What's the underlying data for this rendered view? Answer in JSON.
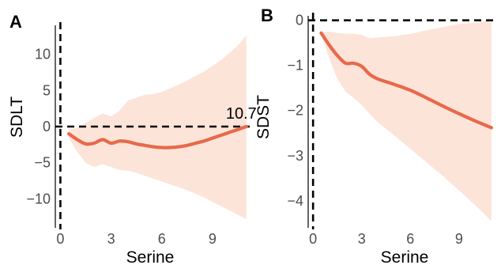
{
  "chart_data": [
    {
      "type": "line",
      "panel_label": "A",
      "xlabel": "Serine",
      "ylabel": "SDLT",
      "xlim": [
        -0.3,
        11.2
      ],
      "ylim": [
        -14,
        14
      ],
      "x_ticks": [
        "0",
        "3",
        "6",
        "9"
      ],
      "y_ticks": [
        "10",
        "5",
        "0",
        "−5",
        "−10"
      ],
      "x_tick_values": [
        0,
        3,
        6,
        9
      ],
      "y_tick_values": [
        10,
        5,
        0,
        -5,
        -10
      ],
      "reference_lines": {
        "x": 0,
        "y": 0
      },
      "annotation": {
        "text": "10.7",
        "x": 10.7,
        "y": 0
      },
      "line_color": "#e8694a",
      "band_color": "#fde4d9",
      "x": [
        0.5,
        1,
        1.5,
        2,
        2.5,
        3,
        3.5,
        4,
        4.5,
        5,
        5.5,
        6,
        6.5,
        7,
        7.5,
        8,
        8.5,
        9,
        9.5,
        10,
        10.5,
        11
      ],
      "y": [
        -1.0,
        -1.8,
        -2.4,
        -2.3,
        -1.8,
        -2.3,
        -2.0,
        -2.1,
        -2.4,
        -2.6,
        -2.8,
        -2.9,
        -2.9,
        -2.8,
        -2.6,
        -2.3,
        -2.0,
        -1.6,
        -1.2,
        -0.8,
        -0.4,
        0.0
      ],
      "lower": [
        -1.6,
        -3.5,
        -5.0,
        -5.6,
        -5.2,
        -5.6,
        -6.0,
        -6.1,
        -6.4,
        -6.8,
        -7.2,
        -7.6,
        -8.0,
        -8.4,
        -8.8,
        -9.3,
        -9.8,
        -10.4,
        -11.0,
        -11.6,
        -12.2,
        -12.8
      ],
      "upper": [
        -0.4,
        -0.2,
        0.5,
        1.2,
        1.8,
        1.4,
        2.2,
        3.6,
        4.0,
        4.4,
        4.5,
        4.8,
        5.3,
        5.8,
        6.4,
        7.0,
        7.6,
        8.4,
        9.2,
        10.2,
        11.2,
        12.6
      ]
    },
    {
      "type": "line",
      "panel_label": "B",
      "xlabel": "Serine",
      "ylabel": "SDST",
      "xlim": [
        -0.3,
        11.2
      ],
      "ylim": [
        -4.6,
        0.1
      ],
      "x_ticks": [
        "0",
        "3",
        "6",
        "9"
      ],
      "y_ticks": [
        "0",
        "−1",
        "−2",
        "−3",
        "−4"
      ],
      "x_tick_values": [
        0,
        3,
        6,
        9
      ],
      "y_tick_values": [
        0,
        -1,
        -2,
        -3,
        -4
      ],
      "reference_lines": {
        "x": 0,
        "y": 0
      },
      "line_color": "#e8694a",
      "band_color": "#fde4d9",
      "x": [
        0.5,
        1,
        1.5,
        2,
        2.5,
        3,
        3.5,
        4,
        5,
        6,
        7,
        8,
        9,
        10,
        11
      ],
      "y": [
        -0.28,
        -0.55,
        -0.78,
        -0.95,
        -0.95,
        -1.02,
        -1.2,
        -1.3,
        -1.42,
        -1.55,
        -1.72,
        -1.9,
        -2.07,
        -2.23,
        -2.38
      ],
      "lower": [
        -0.3,
        -0.85,
        -1.3,
        -1.58,
        -1.72,
        -1.88,
        -2.08,
        -2.26,
        -2.55,
        -2.85,
        -3.15,
        -3.45,
        -3.77,
        -4.1,
        -4.45
      ],
      "upper": [
        -0.26,
        -0.25,
        -0.28,
        -0.3,
        -0.3,
        -0.32,
        -0.4,
        -0.38,
        -0.35,
        -0.3,
        -0.22,
        -0.15,
        -0.08,
        -0.05,
        0.0
      ]
    }
  ]
}
